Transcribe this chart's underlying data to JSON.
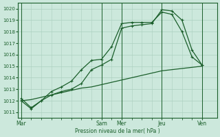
{
  "bg_color": "#cce8dc",
  "grid_color": "#aacfbf",
  "line_color": "#1a5e2a",
  "xtick_labels": [
    "Mar",
    "Sam",
    "Mer",
    "Jeu",
    "Ven"
  ],
  "xtick_positions": [
    0,
    8,
    10,
    14,
    18
  ],
  "ylabel_text": "Pression niveau de la mer( hPa )",
  "ylim": [
    1010.5,
    1020.5
  ],
  "yticks": [
    1011,
    1012,
    1013,
    1014,
    1015,
    1016,
    1017,
    1018,
    1019,
    1020
  ],
  "xlim": [
    -0.3,
    19.5
  ],
  "series1_x": [
    0,
    1,
    2,
    3,
    4,
    5,
    6,
    7,
    8,
    9,
    10,
    11,
    12,
    13,
    14,
    15,
    16,
    17,
    18
  ],
  "series1": [
    1012.0,
    1011.3,
    1012.0,
    1012.8,
    1013.2,
    1013.7,
    1014.7,
    1015.5,
    1015.6,
    1016.7,
    1018.7,
    1018.8,
    1018.8,
    1018.8,
    1019.7,
    1019.5,
    1018.0,
    1015.8,
    1015.1
  ],
  "series2_x": [
    0,
    1,
    2,
    3,
    4,
    5,
    6,
    7,
    8,
    9,
    10,
    11,
    12,
    13,
    14,
    15,
    16,
    17,
    18
  ],
  "series2": [
    1012.2,
    1011.4,
    1012.0,
    1012.5,
    1012.8,
    1013.0,
    1013.5,
    1014.7,
    1015.1,
    1015.6,
    1018.3,
    1018.5,
    1018.6,
    1018.7,
    1019.9,
    1019.8,
    1019.0,
    1016.4,
    1015.1
  ],
  "series3_x": [
    0,
    1,
    2,
    3,
    4,
    5,
    6,
    7,
    8,
    9,
    10,
    11,
    12,
    13,
    14,
    15,
    16,
    17,
    18
  ],
  "series3": [
    1012.0,
    1012.1,
    1012.3,
    1012.5,
    1012.7,
    1012.9,
    1013.1,
    1013.2,
    1013.4,
    1013.6,
    1013.8,
    1014.0,
    1014.2,
    1014.4,
    1014.6,
    1014.7,
    1014.8,
    1014.9,
    1015.0
  ],
  "vline_positions": [
    0,
    8,
    10,
    14,
    18
  ],
  "marker": "+"
}
